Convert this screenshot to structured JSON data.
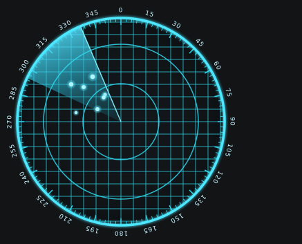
{
  "bearing_labels": [
    "0",
    "15",
    "30",
    "45",
    "60",
    "75",
    "90",
    "105",
    "120",
    "135",
    "150",
    "165",
    "180",
    "195",
    "210",
    "225",
    "240",
    "255",
    "270",
    "285",
    "300",
    "315",
    "330",
    "345"
  ],
  "sweep_bearing_deg": 337,
  "colors": {
    "background": "#121416",
    "primary": "#2fd8ee",
    "glow": "#4ee8ff",
    "sweep": "#49d7f0"
  },
  "icons": {
    "targets": "target-blip-icon"
  }
}
